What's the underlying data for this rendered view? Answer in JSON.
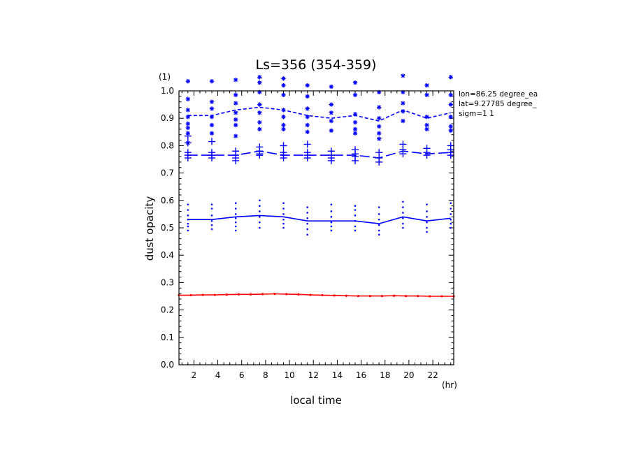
{
  "chart_data": {
    "type": "line",
    "title": "Ls=356 (354-359)",
    "xlabel": "local time",
    "xunit": "(hr)",
    "ylabel": "dust opacity",
    "yunit": "(1)",
    "xlim": [
      0.75,
      23.75
    ],
    "ylim": [
      0.0,
      1.0
    ],
    "xticks": [
      2,
      4,
      6,
      8,
      10,
      12,
      14,
      16,
      18,
      20,
      22
    ],
    "yticks": [
      0.0,
      0.1,
      0.2,
      0.3,
      0.4,
      0.5,
      0.6,
      0.7,
      0.8,
      0.9,
      1.0
    ],
    "x_major_step": 2,
    "x_minor_step": 0.5,
    "y_minor_step": 0.02,
    "grid": false,
    "info_lines": [
      "lon=86.25 degree_ea",
      "lat=9.27785 degree_",
      "sigm=1 1"
    ],
    "colors": {
      "mean": "#0000ff",
      "red": "#ff0000",
      "axis": "#000000"
    },
    "x": [
      1.5,
      3.5,
      5.5,
      7.5,
      9.5,
      11.5,
      13.5,
      15.5,
      17.5,
      19.5,
      21.5,
      23.5
    ],
    "series": [
      {
        "style": "dashed",
        "color": "#0000ff",
        "values": [
          0.91,
          0.91,
          0.93,
          0.94,
          0.93,
          0.91,
          0.9,
          0.91,
          0.89,
          0.93,
          0.9,
          0.92
        ]
      },
      {
        "style": "long-dash",
        "color": "#0000ff",
        "values": [
          0.765,
          0.765,
          0.765,
          0.78,
          0.765,
          0.765,
          0.765,
          0.765,
          0.755,
          0.78,
          0.77,
          0.775
        ]
      },
      {
        "style": "solid",
        "color": "#0000ff",
        "values": [
          0.53,
          0.53,
          0.54,
          0.545,
          0.54,
          0.525,
          0.525,
          0.525,
          0.515,
          0.54,
          0.525,
          0.535
        ]
      },
      {
        "style": "solid-markers",
        "color": "#ff0000",
        "x": [
          0.75,
          1.75,
          2.75,
          3.75,
          4.75,
          5.75,
          6.75,
          7.75,
          8.75,
          9.75,
          10.75,
          11.75,
          12.75,
          13.75,
          14.75,
          15.75,
          16.75,
          17.75,
          18.75,
          19.75,
          20.75,
          21.75,
          22.75,
          23.75
        ],
        "values": [
          0.254,
          0.254,
          0.255,
          0.255,
          0.256,
          0.257,
          0.257,
          0.258,
          0.259,
          0.258,
          0.257,
          0.255,
          0.254,
          0.253,
          0.252,
          0.251,
          0.251,
          0.251,
          0.252,
          0.251,
          0.251,
          0.25,
          0.25,
          0.25
        ]
      }
    ],
    "scatter": [
      {
        "marker": "asterisk",
        "color": "#0000ff",
        "points": [
          [
            1.5,
            1.035
          ],
          [
            1.5,
            0.97
          ],
          [
            1.5,
            0.93
          ],
          [
            1.5,
            0.905
          ],
          [
            1.5,
            0.88
          ],
          [
            1.5,
            0.865
          ],
          [
            1.5,
            0.845
          ],
          [
            1.5,
            0.81
          ],
          [
            3.5,
            1.035
          ],
          [
            3.5,
            0.96
          ],
          [
            3.5,
            0.935
          ],
          [
            3.5,
            0.905
          ],
          [
            3.5,
            0.875
          ],
          [
            3.5,
            0.845
          ],
          [
            5.5,
            1.04
          ],
          [
            5.5,
            0.985
          ],
          [
            5.5,
            0.955
          ],
          [
            5.5,
            0.92
          ],
          [
            5.5,
            0.895
          ],
          [
            5.5,
            0.875
          ],
          [
            5.5,
            0.835
          ],
          [
            7.5,
            1.05
          ],
          [
            7.5,
            1.03
          ],
          [
            7.5,
            0.995
          ],
          [
            7.5,
            0.95
          ],
          [
            7.5,
            0.92
          ],
          [
            7.5,
            0.885
          ],
          [
            7.5,
            0.86
          ],
          [
            9.5,
            1.045
          ],
          [
            9.5,
            1.02
          ],
          [
            9.5,
            0.985
          ],
          [
            9.5,
            0.93
          ],
          [
            9.5,
            0.905
          ],
          [
            9.5,
            0.875
          ],
          [
            9.5,
            0.86
          ],
          [
            11.5,
            1.02
          ],
          [
            11.5,
            0.98
          ],
          [
            11.5,
            0.935
          ],
          [
            11.5,
            0.905
          ],
          [
            11.5,
            0.875
          ],
          [
            11.5,
            0.85
          ],
          [
            13.5,
            1.015
          ],
          [
            13.5,
            0.95
          ],
          [
            13.5,
            0.92
          ],
          [
            13.5,
            0.89
          ],
          [
            13.5,
            0.855
          ],
          [
            15.5,
            1.03
          ],
          [
            15.5,
            0.985
          ],
          [
            15.5,
            0.915
          ],
          [
            15.5,
            0.885
          ],
          [
            15.5,
            0.86
          ],
          [
            15.5,
            0.845
          ],
          [
            17.5,
            0.995
          ],
          [
            17.5,
            0.94
          ],
          [
            17.5,
            0.9
          ],
          [
            17.5,
            0.87
          ],
          [
            17.5,
            0.845
          ],
          [
            17.5,
            0.825
          ],
          [
            19.5,
            1.055
          ],
          [
            19.5,
            0.995
          ],
          [
            19.5,
            0.955
          ],
          [
            19.5,
            0.925
          ],
          [
            19.5,
            0.89
          ],
          [
            21.5,
            1.02
          ],
          [
            21.5,
            0.985
          ],
          [
            21.5,
            0.905
          ],
          [
            21.5,
            0.875
          ],
          [
            21.5,
            0.86
          ],
          [
            23.5,
            1.05
          ],
          [
            23.5,
            0.985
          ],
          [
            23.5,
            0.95
          ],
          [
            23.5,
            0.905
          ],
          [
            23.5,
            0.87
          ],
          [
            23.5,
            0.855
          ]
        ]
      },
      {
        "marker": "plus",
        "color": "#0000ff",
        "points": [
          [
            1.5,
            0.835
          ],
          [
            1.5,
            0.81
          ],
          [
            1.5,
            0.775
          ],
          [
            1.5,
            0.765
          ],
          [
            1.5,
            0.755
          ],
          [
            3.5,
            0.815
          ],
          [
            3.5,
            0.775
          ],
          [
            3.5,
            0.765
          ],
          [
            3.5,
            0.755
          ],
          [
            5.5,
            0.78
          ],
          [
            5.5,
            0.765
          ],
          [
            5.5,
            0.755
          ],
          [
            5.5,
            0.745
          ],
          [
            7.5,
            0.795
          ],
          [
            7.5,
            0.78
          ],
          [
            7.5,
            0.77
          ],
          [
            7.5,
            0.765
          ],
          [
            9.5,
            0.8
          ],
          [
            9.5,
            0.775
          ],
          [
            9.5,
            0.765
          ],
          [
            9.5,
            0.755
          ],
          [
            11.5,
            0.805
          ],
          [
            11.5,
            0.775
          ],
          [
            11.5,
            0.765
          ],
          [
            11.5,
            0.755
          ],
          [
            13.5,
            0.78
          ],
          [
            13.5,
            0.765
          ],
          [
            13.5,
            0.755
          ],
          [
            13.5,
            0.745
          ],
          [
            15.5,
            0.785
          ],
          [
            15.5,
            0.77
          ],
          [
            15.5,
            0.76
          ],
          [
            15.5,
            0.745
          ],
          [
            17.5,
            0.775
          ],
          [
            17.5,
            0.755
          ],
          [
            17.5,
            0.74
          ],
          [
            19.5,
            0.805
          ],
          [
            19.5,
            0.785
          ],
          [
            19.5,
            0.77
          ],
          [
            21.5,
            0.79
          ],
          [
            21.5,
            0.775
          ],
          [
            21.5,
            0.765
          ],
          [
            23.5,
            0.8
          ],
          [
            23.5,
            0.785
          ],
          [
            23.5,
            0.775
          ],
          [
            23.5,
            0.765
          ]
        ]
      },
      {
        "marker": "dot",
        "color": "#0000ff",
        "points": [
          [
            1.5,
            0.585
          ],
          [
            1.5,
            0.565
          ],
          [
            1.5,
            0.545
          ],
          [
            1.5,
            0.53
          ],
          [
            1.5,
            0.515
          ],
          [
            1.5,
            0.505
          ],
          [
            1.5,
            0.49
          ],
          [
            3.5,
            0.585
          ],
          [
            3.5,
            0.57
          ],
          [
            3.5,
            0.545
          ],
          [
            3.5,
            0.525
          ],
          [
            3.5,
            0.51
          ],
          [
            3.5,
            0.495
          ],
          [
            5.5,
            0.59
          ],
          [
            5.5,
            0.57
          ],
          [
            5.5,
            0.55
          ],
          [
            5.5,
            0.535
          ],
          [
            5.5,
            0.52
          ],
          [
            5.5,
            0.505
          ],
          [
            5.5,
            0.49
          ],
          [
            7.5,
            0.6
          ],
          [
            7.5,
            0.58
          ],
          [
            7.5,
            0.56
          ],
          [
            7.5,
            0.54
          ],
          [
            7.5,
            0.52
          ],
          [
            7.5,
            0.5
          ],
          [
            9.5,
            0.59
          ],
          [
            9.5,
            0.57
          ],
          [
            9.5,
            0.55
          ],
          [
            9.5,
            0.53
          ],
          [
            9.5,
            0.515
          ],
          [
            9.5,
            0.5
          ],
          [
            11.5,
            0.575
          ],
          [
            11.5,
            0.555
          ],
          [
            11.5,
            0.535
          ],
          [
            11.5,
            0.515
          ],
          [
            11.5,
            0.495
          ],
          [
            11.5,
            0.475
          ],
          [
            13.5,
            0.585
          ],
          [
            13.5,
            0.56
          ],
          [
            13.5,
            0.54
          ],
          [
            13.5,
            0.52
          ],
          [
            13.5,
            0.505
          ],
          [
            13.5,
            0.49
          ],
          [
            15.5,
            0.58
          ],
          [
            15.5,
            0.565
          ],
          [
            15.5,
            0.545
          ],
          [
            15.5,
            0.525
          ],
          [
            15.5,
            0.505
          ],
          [
            15.5,
            0.49
          ],
          [
            17.5,
            0.575
          ],
          [
            17.5,
            0.55
          ],
          [
            17.5,
            0.53
          ],
          [
            17.5,
            0.51
          ],
          [
            17.5,
            0.49
          ],
          [
            17.5,
            0.475
          ],
          [
            19.5,
            0.595
          ],
          [
            19.5,
            0.575
          ],
          [
            19.5,
            0.555
          ],
          [
            19.5,
            0.535
          ],
          [
            19.5,
            0.515
          ],
          [
            19.5,
            0.5
          ],
          [
            21.5,
            0.585
          ],
          [
            21.5,
            0.56
          ],
          [
            21.5,
            0.54
          ],
          [
            21.5,
            0.52
          ],
          [
            21.5,
            0.5
          ],
          [
            21.5,
            0.485
          ],
          [
            23.5,
            0.59
          ],
          [
            23.5,
            0.57
          ],
          [
            23.5,
            0.55
          ],
          [
            23.5,
            0.53
          ],
          [
            23.5,
            0.515
          ],
          [
            23.5,
            0.5
          ]
        ]
      }
    ]
  }
}
